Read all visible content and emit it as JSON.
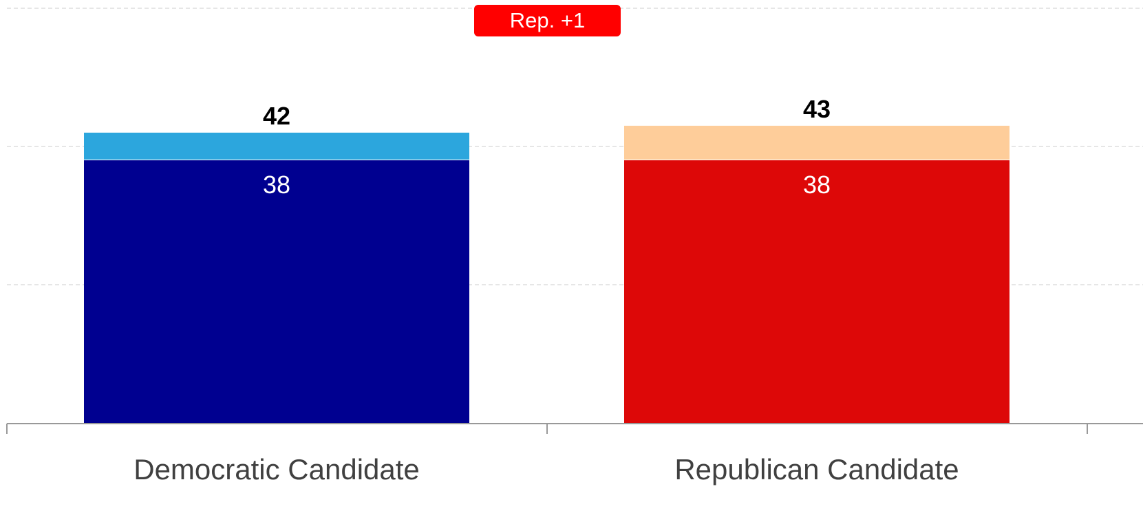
{
  "badge": {
    "text": "Rep. +1",
    "color": "#ff0000"
  },
  "colors": {
    "democratic_base": "#000090",
    "democratic_lean": "#2ca6dd",
    "republican_base": "#dd0808",
    "republican_lean": "#fecd9a",
    "grid": "#cccccc",
    "axis": "#999999",
    "total_label": "#000000",
    "base_label": "#ffffff",
    "category_label": "#404040"
  },
  "chart_data": {
    "type": "bar",
    "stacked": true,
    "categories": [
      "Democratic Candidate",
      "Republican Candidate"
    ],
    "series": [
      {
        "values": [
          38,
          38
        ]
      },
      {
        "values": [
          4,
          5
        ]
      }
    ],
    "totals": [
      42,
      43
    ],
    "ylim": [
      0,
      60
    ],
    "grid": true,
    "gridline_values": [
      20,
      40,
      60
    ],
    "xlabel": "",
    "ylabel": ""
  }
}
